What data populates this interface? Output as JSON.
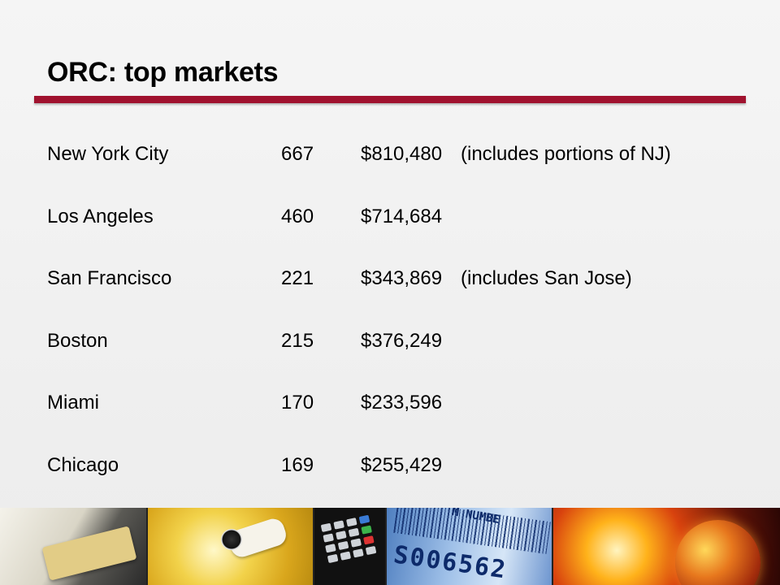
{
  "slide": {
    "title": "ORC: top markets",
    "rows": [
      {
        "city": "New York City",
        "count": "667",
        "amount": "$810,480",
        "note": "(includes portions of NJ)"
      },
      {
        "city": "Los Angeles",
        "count": "460",
        "amount": "$714,684",
        "note": ""
      },
      {
        "city": "San Francisco",
        "count": "221",
        "amount": "$343,869",
        "note": "(includes San Jose)"
      },
      {
        "city": "Boston",
        "count": "215",
        "amount": "$376,249",
        "note": ""
      },
      {
        "city": "Miami",
        "count": "170",
        "amount": "$233,596",
        "note": ""
      },
      {
        "city": "Chicago",
        "count": "169",
        "amount": "$255,429",
        "note": ""
      }
    ]
  },
  "footer_strip": {
    "barcode_header": "M NUMBE",
    "barcode_number": "S006562",
    "images": [
      "credit-card-terminal",
      "security-camera",
      "keypad",
      "barcode-label",
      "glowing-globe"
    ]
  },
  "colors": {
    "accent_rule": "#a0122e",
    "background": "#f0f0f0"
  }
}
